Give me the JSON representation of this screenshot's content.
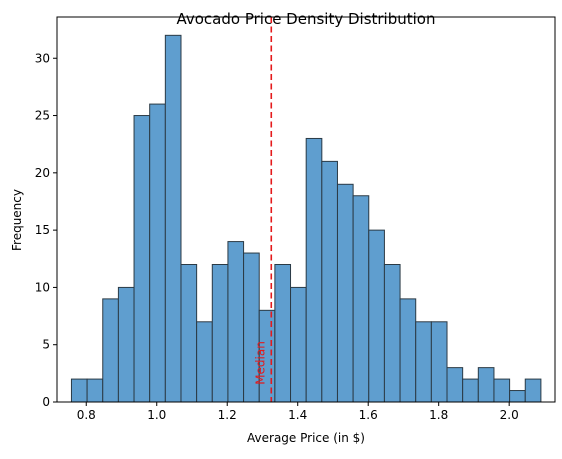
{
  "chart_data": {
    "type": "bar",
    "title": "Avocado Price Density Distribution",
    "xlabel": "Average Price (in $)",
    "ylabel": "Frequency",
    "xlim": [
      0.717,
      2.13
    ],
    "ylim": [
      0,
      33.6
    ],
    "x_ticks": [
      0.8,
      1.0,
      1.2,
      1.4,
      1.6,
      1.8,
      2.0
    ],
    "x_tick_labels": [
      "0.8",
      "1.0",
      "1.2",
      "1.4",
      "1.6",
      "1.8",
      "2.0"
    ],
    "y_ticks": [
      0,
      5,
      10,
      15,
      20,
      25,
      30
    ],
    "y_tick_labels": [
      "0",
      "5",
      "10",
      "15",
      "20",
      "25",
      "30"
    ],
    "bin_start": 0.758,
    "bin_width": 0.0444,
    "values": [
      2,
      2,
      9,
      10,
      25,
      26,
      32,
      12,
      7,
      12,
      14,
      13,
      8,
      12,
      10,
      23,
      21,
      19,
      18,
      15,
      12,
      9,
      7,
      7,
      3,
      2,
      3,
      2,
      1,
      2
    ],
    "bar_color": "#5f9ecf",
    "bar_edge_color": "#2b3a45",
    "grid": false,
    "median": {
      "value": 1.325,
      "label": "Median",
      "color": "#e41a1c"
    }
  }
}
